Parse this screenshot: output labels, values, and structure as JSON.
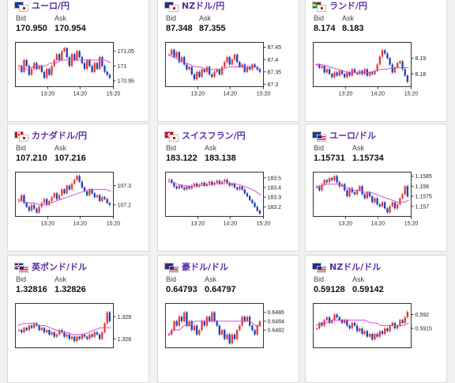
{
  "labels": {
    "bid": "Bid",
    "ask": "Ask"
  },
  "colors": {
    "up": "#e53935",
    "down": "#1e3fb4",
    "ma": "#d84fd8",
    "pair_text": "#5b2ea6"
  },
  "cards": [
    {
      "pair": "ユーロ/円",
      "flag": "eu-jp",
      "bid": "170.950",
      "ask": "170.954"
    },
    {
      "pair": "NZドル/円",
      "flag": "nz-jp",
      "bid": "87.348",
      "ask": "87.355"
    },
    {
      "pair": "ランド/円",
      "flag": "za-jp",
      "bid": "8.174",
      "ask": "8.183"
    },
    {
      "pair": "カナダドル/円",
      "flag": "ca-jp",
      "bid": "107.210",
      "ask": "107.216"
    },
    {
      "pair": "スイスフラン/円",
      "flag": "ch-jp",
      "bid": "183.122",
      "ask": "183.138"
    },
    {
      "pair": "ユーロ/ドル",
      "flag": "eu-us",
      "bid": "1.15731",
      "ask": "1.15734"
    },
    {
      "pair": "英ポンド/ドル",
      "flag": "gb-us",
      "bid": "1.32816",
      "ask": "1.32826"
    },
    {
      "pair": "豪ドル/ドル",
      "flag": "au-us",
      "bid": "0.64793",
      "ask": "0.64797"
    },
    {
      "pair": "NZドル/ドル",
      "flag": "nz-us",
      "bid": "0.59128",
      "ask": "0.59142"
    }
  ],
  "chart_data": [
    {
      "type": "candlestick",
      "x_ticks": [
        "13:20",
        "14:20",
        "15:20"
      ],
      "y_ticks": [
        "171.05",
        "171",
        "170.95"
      ],
      "y_range": [
        170.93,
        171.08
      ],
      "close": [
        171.0,
        170.98,
        171.02,
        171.0,
        170.97,
        170.99,
        171.01,
        170.99,
        171.0,
        170.98,
        170.96,
        170.99,
        170.97,
        171.0,
        171.02,
        171.04,
        171.02,
        171.05,
        171.06,
        171.03,
        171.0,
        171.04,
        171.02,
        171.05,
        171.03,
        171.01,
        170.99,
        171.02,
        171.0,
        170.98,
        171.01,
        170.99,
        171.03,
        171.0,
        170.98,
        170.97,
        170.96
      ],
      "ma": [
        170.99,
        170.99,
        170.99,
        171.0,
        171.0,
        171.0,
        171.01,
        171.01,
        171.02,
        171.02,
        171.02,
        171.02,
        171.02,
        171.02,
        171.02,
        171.02,
        171.02,
        171.01
      ]
    },
    {
      "type": "candlestick",
      "x_ticks": [
        "13:20",
        "14:20",
        "15:20"
      ],
      "y_ticks": [
        "87.45",
        "87.4",
        "87.35",
        "87.3"
      ],
      "y_range": [
        87.29,
        87.47
      ],
      "close": [
        87.42,
        87.44,
        87.41,
        87.43,
        87.39,
        87.41,
        87.38,
        87.36,
        87.37,
        87.34,
        87.32,
        87.35,
        87.33,
        87.36,
        87.35,
        87.37,
        87.34,
        87.33,
        87.35,
        87.36,
        87.34,
        87.37,
        87.39,
        87.41,
        87.38,
        87.4,
        87.42,
        87.39,
        87.37,
        87.38,
        87.35,
        87.37,
        87.36,
        87.38,
        87.37,
        87.36,
        87.35
      ],
      "ma": [
        87.42,
        87.41,
        87.4,
        87.39,
        87.38,
        87.37,
        87.37,
        87.36,
        87.36,
        87.36,
        87.36,
        87.37,
        87.37,
        87.37,
        87.37,
        87.37,
        87.37,
        87.36
      ]
    },
    {
      "type": "candlestick",
      "x_ticks": [
        "13:20",
        "14:20",
        "15:20"
      ],
      "y_ticks": [
        "8.19",
        "8.18"
      ],
      "y_range": [
        8.172,
        8.2
      ],
      "close": [
        8.186,
        8.184,
        8.185,
        8.181,
        8.183,
        8.18,
        8.178,
        8.181,
        8.179,
        8.182,
        8.18,
        8.178,
        8.181,
        8.179,
        8.183,
        8.181,
        8.18,
        8.182,
        8.18,
        8.183,
        8.179,
        8.181,
        8.18,
        8.182,
        8.186,
        8.191,
        8.195,
        8.193,
        8.19,
        8.186,
        8.181,
        8.184,
        8.187,
        8.188,
        8.183,
        8.179,
        8.175
      ],
      "ma": [
        8.186,
        8.186,
        8.185,
        8.184,
        8.183,
        8.182,
        8.181,
        8.181,
        8.18,
        8.181,
        8.181,
        8.182,
        8.183,
        8.183,
        8.184,
        8.184,
        8.184,
        8.184
      ]
    },
    {
      "type": "candlestick",
      "x_ticks": [
        "13:20",
        "14:20",
        "15:20"
      ],
      "y_ticks": [
        "107.3",
        "107.2"
      ],
      "y_range": [
        107.14,
        107.37
      ],
      "close": [
        107.22,
        107.25,
        107.21,
        107.19,
        107.17,
        107.2,
        107.18,
        107.16,
        107.19,
        107.21,
        107.23,
        107.2,
        107.22,
        107.24,
        107.26,
        107.23,
        107.25,
        107.28,
        107.26,
        107.3,
        107.28,
        107.31,
        107.33,
        107.35,
        107.32,
        107.29,
        107.27,
        107.25,
        107.28,
        107.26,
        107.24,
        107.25,
        107.22,
        107.24,
        107.23,
        107.21,
        107.2
      ],
      "ma": [
        107.23,
        107.22,
        107.21,
        107.21,
        107.2,
        107.2,
        107.21,
        107.22,
        107.23,
        107.24,
        107.25,
        107.26,
        107.27,
        107.28,
        107.28,
        107.28,
        107.28,
        107.27
      ]
    },
    {
      "type": "candlestick",
      "x_ticks": [
        "13:20",
        "14:20",
        "15:20"
      ],
      "y_ticks": [
        "183.5",
        "183.4",
        "183.3",
        "183.2"
      ],
      "y_range": [
        183.1,
        183.56
      ],
      "close": [
        183.48,
        183.45,
        183.41,
        183.39,
        183.42,
        183.4,
        183.38,
        183.41,
        183.39,
        183.42,
        183.44,
        183.41,
        183.43,
        183.45,
        183.42,
        183.44,
        183.46,
        183.43,
        183.45,
        183.47,
        183.44,
        183.46,
        183.48,
        183.45,
        183.42,
        183.44,
        183.4,
        183.38,
        183.41,
        183.38,
        183.34,
        183.31,
        183.27,
        183.24,
        183.2,
        183.16,
        183.13
      ],
      "ma": [
        183.46,
        183.45,
        183.43,
        183.42,
        183.41,
        183.41,
        183.42,
        183.42,
        183.43,
        183.44,
        183.44,
        183.44,
        183.44,
        183.43,
        183.41,
        183.39,
        183.36,
        183.32
      ]
    },
    {
      "type": "candlestick",
      "x_ticks": [
        "13:20",
        "14:20",
        "15:20"
      ],
      "y_ticks": [
        "1.1585",
        "1.158",
        "1.1575",
        "1.157"
      ],
      "y_range": [
        1.1565,
        1.1587
      ],
      "close": [
        1.158,
        1.1578,
        1.1581,
        1.1583,
        1.1582,
        1.1584,
        1.1583,
        1.1585,
        1.1582,
        1.158,
        1.1581,
        1.1578,
        1.1575,
        1.1579,
        1.1577,
        1.1576,
        1.1578,
        1.158,
        1.1576,
        1.1574,
        1.1577,
        1.1575,
        1.1572,
        1.1574,
        1.1571,
        1.157,
        1.1572,
        1.1569,
        1.1567,
        1.157,
        1.1572,
        1.1569,
        1.1571,
        1.1574,
        1.1576,
        1.158,
        1.1575
      ],
      "ma": [
        1.1579,
        1.158,
        1.1581,
        1.1581,
        1.1581,
        1.158,
        1.1579,
        1.1578,
        1.1578,
        1.1577,
        1.1577,
        1.1576,
        1.1575,
        1.1574,
        1.1573,
        1.1572,
        1.1572,
        1.1573
      ]
    },
    {
      "type": "candlestick",
      "x_ticks": [],
      "y_ticks": [
        "1.329",
        "1.328"
      ],
      "y_range": [
        1.3276,
        1.3296
      ],
      "close": [
        1.3284,
        1.3283,
        1.3285,
        1.3284,
        1.3286,
        1.3285,
        1.3287,
        1.3286,
        1.3284,
        1.3285,
        1.3283,
        1.3284,
        1.3282,
        1.3283,
        1.3281,
        1.3282,
        1.3284,
        1.3283,
        1.3281,
        1.3282,
        1.328,
        1.3281,
        1.3279,
        1.3281,
        1.328,
        1.3282,
        1.3281,
        1.328,
        1.3282,
        1.3281,
        1.3283,
        1.3282,
        1.328,
        1.3283,
        1.3287,
        1.3292,
        1.3288
      ],
      "ma": [
        1.3286,
        1.3287,
        1.3287,
        1.3287,
        1.3286,
        1.3286,
        1.3285,
        1.3284,
        1.3283,
        1.3283,
        1.3282,
        1.3282,
        1.3282,
        1.3283,
        1.3284,
        1.3285,
        1.3285,
        1.3285
      ]
    },
    {
      "type": "candlestick",
      "x_ticks": [],
      "y_ticks": [
        "0.6486",
        "0.6484",
        "0.6482"
      ],
      "y_range": [
        0.6478,
        0.6488
      ],
      "close": [
        0.6481,
        0.6482,
        0.6484,
        0.6483,
        0.6485,
        0.6484,
        0.6486,
        0.6483,
        0.6484,
        0.6482,
        0.6483,
        0.6481,
        0.6482,
        0.6484,
        0.6483,
        0.6485,
        0.6484,
        0.6486,
        0.6484,
        0.6483,
        0.6481,
        0.6482,
        0.648,
        0.6481,
        0.6479,
        0.6481,
        0.648,
        0.6482,
        0.6483,
        0.6485,
        0.6484,
        0.6485,
        0.6483,
        0.6482,
        0.6481,
        0.6483,
        0.6484
      ],
      "ma": [
        0.6481,
        0.6482,
        0.6482,
        0.6483,
        0.6483,
        0.6484,
        0.6484,
        0.6484,
        0.6484,
        0.6484,
        0.6484,
        0.6484,
        0.6484,
        0.6484,
        0.6484,
        0.6484,
        0.6483,
        0.6483
      ]
    },
    {
      "type": "candlestick",
      "x_ticks": [],
      "y_ticks": [
        "0.592",
        "0.5915"
      ],
      "y_range": [
        0.5908,
        0.5924
      ],
      "close": [
        0.5915,
        0.5917,
        0.5916,
        0.5918,
        0.5919,
        0.5917,
        0.5918,
        0.592,
        0.5919,
        0.5918,
        0.5917,
        0.5918,
        0.5916,
        0.5915,
        0.5917,
        0.5916,
        0.5914,
        0.5915,
        0.5913,
        0.5914,
        0.5912,
        0.5913,
        0.5911,
        0.5913,
        0.5912,
        0.5914,
        0.5913,
        0.5915,
        0.5914,
        0.5916,
        0.5917,
        0.5915,
        0.5916,
        0.5918,
        0.5917,
        0.5919,
        0.5921
      ],
      "ma": [
        0.5916,
        0.5917,
        0.5917,
        0.5918,
        0.5918,
        0.5918,
        0.5918,
        0.5918,
        0.5918,
        0.5918,
        0.5917,
        0.5917,
        0.5916,
        0.5916,
        0.5916,
        0.5916,
        0.5916,
        0.5917
      ]
    }
  ]
}
